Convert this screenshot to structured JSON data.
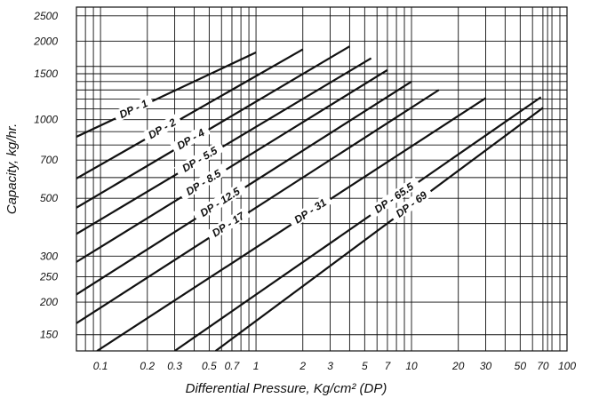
{
  "chart_data": {
    "type": "line",
    "title": "",
    "xlabel": "Differential Pressure, Kg/cm² (DP)",
    "ylabel": "Capacity, kg/hr.",
    "x_scale": "log",
    "y_scale": "log",
    "xlim": [
      0.07,
      100
    ],
    "ylim": [
      130,
      2700
    ],
    "grid": true,
    "x_ticks": [
      0.1,
      0.2,
      0.3,
      0.5,
      0.7,
      1,
      2,
      3,
      5,
      7,
      10,
      20,
      30,
      50,
      70,
      100
    ],
    "x_tick_labels": [
      "0.1",
      "0.2",
      "0.3",
      "0.5",
      "0.7",
      "1",
      "2",
      "3",
      "5",
      "7",
      "10",
      "20",
      "30",
      "50",
      "70",
      "100"
    ],
    "y_ticks": [
      150,
      200,
      250,
      300,
      500,
      700,
      1000,
      1500,
      2000,
      2500
    ],
    "y_tick_labels": [
      "150",
      "200",
      "250",
      "300",
      "500",
      "700",
      "1000",
      "1500",
      "2000",
      "2500"
    ],
    "x_gridlines": [
      0.08,
      0.09,
      0.1,
      0.2,
      0.3,
      0.4,
      0.5,
      0.6,
      0.7,
      0.8,
      0.9,
      1,
      2,
      3,
      4,
      5,
      6,
      7,
      8,
      9,
      10,
      20,
      30,
      40,
      50,
      60,
      70,
      75,
      80,
      90,
      100
    ],
    "y_gridlines": [
      150,
      200,
      250,
      300,
      400,
      500,
      600,
      700,
      800,
      900,
      1000,
      1100,
      1200,
      1300,
      1400,
      1500,
      1600,
      2000,
      2500
    ],
    "series": [
      {
        "name": "DP - 1",
        "x": [
          0.07,
          1.0
        ],
        "y": [
          860,
          1810
        ]
      },
      {
        "name": "DP - 2",
        "x": [
          0.07,
          2.0
        ],
        "y": [
          595,
          1860
        ]
      },
      {
        "name": "DP - 4",
        "x": [
          0.07,
          4.0
        ],
        "y": [
          460,
          1910
        ]
      },
      {
        "name": "DP - 5.5",
        "x": [
          0.07,
          5.5
        ],
        "y": [
          365,
          1720
        ]
      },
      {
        "name": "DP - 8.5",
        "x": [
          0.07,
          7.0
        ],
        "y": [
          285,
          1550
        ]
      },
      {
        "name": "DP - 12.5",
        "x": [
          0.07,
          10.0
        ],
        "y": [
          214,
          1400
        ]
      },
      {
        "name": "DP - 17",
        "x": [
          0.07,
          15.0
        ],
        "y": [
          166,
          1300
        ]
      },
      {
        "name": "DP - 31",
        "x": [
          0.095,
          30.0
        ],
        "y": [
          130,
          1210
        ]
      },
      {
        "name": "DP - 65.5",
        "x": [
          0.3,
          68.0
        ],
        "y": [
          130,
          1220
        ]
      },
      {
        "name": "DP - 69",
        "x": [
          0.55,
          70.0
        ],
        "y": [
          130,
          1110
        ]
      }
    ]
  }
}
